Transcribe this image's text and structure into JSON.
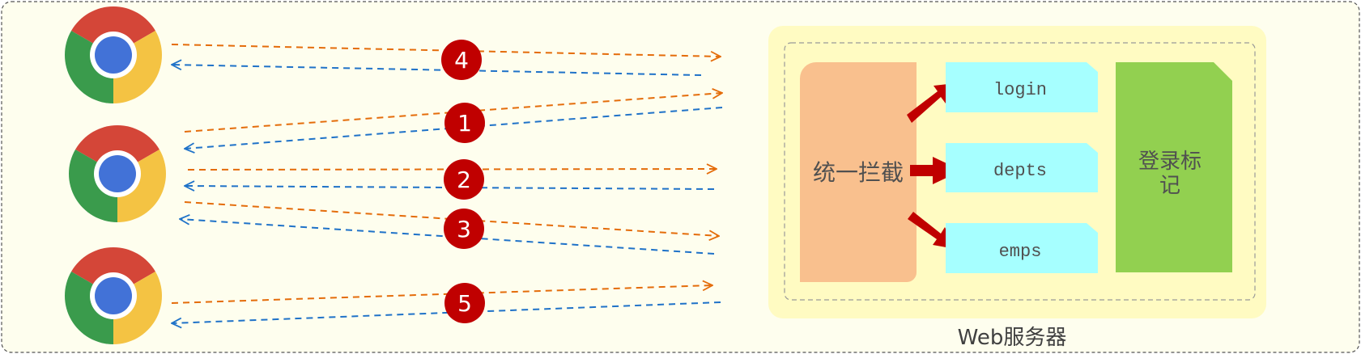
{
  "colors": {
    "canvas_bg": "#fefeee",
    "server_bg": "#fffbc2",
    "request_arrow": "#e46c0a",
    "response_arrow": "#1f72c8",
    "step_badge": "#c00000",
    "interceptor": "#f9c08e",
    "endpoint": "#a6ffff",
    "login_flag": "#92d050",
    "route_arrow": "#c00000"
  },
  "browsers": [
    {
      "name": "browser-1",
      "icon": "chrome-icon"
    },
    {
      "name": "browser-2",
      "icon": "chrome-icon"
    },
    {
      "name": "browser-3",
      "icon": "chrome-icon"
    }
  ],
  "steps": [
    "4",
    "1",
    "2",
    "3",
    "5"
  ],
  "server": {
    "label": "Web服务器",
    "interceptor_label": "统一拦截",
    "endpoints": [
      "login",
      "depts",
      "emps"
    ],
    "login_flag_line1": "登录标",
    "login_flag_line2": "记"
  }
}
